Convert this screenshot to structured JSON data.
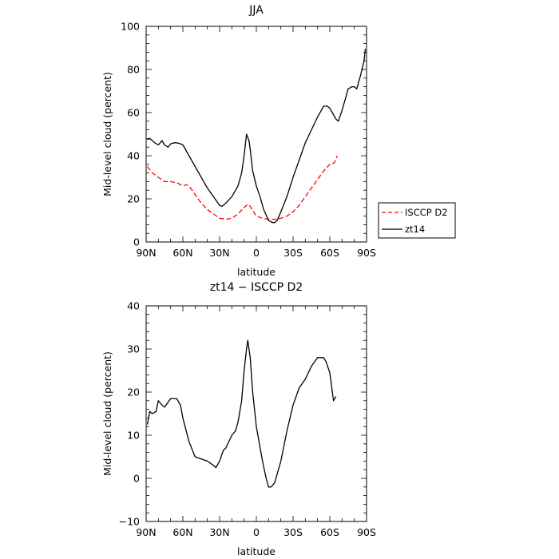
{
  "chart_data": [
    {
      "type": "line",
      "title": "JJA",
      "xlabel": "latitude",
      "ylabel": "Mid-level cloud (percent)",
      "xlim": [
        90,
        -90
      ],
      "ylim": [
        0,
        100
      ],
      "xticks": [
        90,
        60,
        30,
        0,
        -30,
        -60,
        -90
      ],
      "xtick_labels": [
        "90N",
        "60N",
        "30N",
        "0",
        "30S",
        "60S",
        "90S"
      ],
      "yticks": [
        0,
        20,
        40,
        60,
        80,
        100
      ],
      "ytick_labels": [
        "0",
        "20",
        "40",
        "60",
        "80",
        "100"
      ],
      "legend": {
        "placement": "right",
        "entries": [
          "ISCCP D2",
          "zt14"
        ]
      },
      "series": [
        {
          "name": "ISCCP D2",
          "color": "#ff0000",
          "dash": true,
          "x": [
            89,
            85,
            80,
            75,
            70,
            65,
            60,
            57,
            55,
            50,
            45,
            40,
            35,
            30,
            25,
            20,
            15,
            10,
            7,
            5,
            0,
            -5,
            -10,
            -15,
            -20,
            -25,
            -30,
            -35,
            -40,
            -45,
            -50,
            -55,
            -60,
            -62,
            -64,
            -66
          ],
          "y": [
            35,
            32,
            30,
            28,
            28,
            27.5,
            26,
            26.5,
            26,
            22,
            18,
            15,
            13,
            11,
            10.5,
            11,
            13,
            16,
            17.5,
            16.5,
            12,
            11,
            10.5,
            10.5,
            11,
            12,
            14,
            17,
            21,
            25,
            29,
            33,
            36,
            36,
            37,
            40
          ]
        },
        {
          "name": "zt14",
          "color": "#000000",
          "dash": false,
          "x": [
            89,
            87,
            85,
            83,
            80,
            77,
            75,
            72,
            70,
            67,
            65,
            62,
            60,
            55,
            50,
            45,
            40,
            35,
            30,
            28,
            25,
            20,
            15,
            12,
            10,
            8,
            6,
            5,
            3,
            0,
            -3,
            -6,
            -10,
            -13,
            -15,
            -17,
            -20,
            -25,
            -30,
            -35,
            -40,
            -45,
            -50,
            -55,
            -58,
            -60,
            -62,
            -65,
            -67,
            -70,
            -72,
            -75,
            -78,
            -80,
            -82,
            -85,
            -88,
            -89
          ],
          "y": [
            47.5,
            48,
            47,
            46,
            45,
            47,
            45,
            44,
            45.5,
            46,
            46,
            45.5,
            45,
            40,
            35,
            30,
            25,
            21,
            17,
            16.5,
            18,
            21,
            26,
            32,
            40,
            50,
            47,
            43,
            33,
            26,
            21,
            15,
            10,
            9,
            9,
            10,
            14,
            21,
            30,
            38,
            46,
            52,
            58,
            63,
            63,
            62,
            60,
            57,
            56,
            61,
            65,
            71,
            72,
            72,
            71,
            77,
            84,
            89.5
          ]
        }
      ]
    },
    {
      "type": "line",
      "title": "zt14 − ISCCP D2",
      "xlabel": "latitude",
      "ylabel": "Mid-level cloud (percent)",
      "xlim": [
        90,
        -90
      ],
      "ylim": [
        -10,
        40
      ],
      "xticks": [
        90,
        60,
        30,
        0,
        -30,
        -60,
        -90
      ],
      "xtick_labels": [
        "90N",
        "60N",
        "30N",
        "0",
        "30S",
        "60S",
        "90S"
      ],
      "yticks": [
        -10,
        0,
        10,
        20,
        30,
        40
      ],
      "ytick_labels": [
        "−10",
        "0",
        "10",
        "20",
        "30",
        "40"
      ],
      "series": [
        {
          "color": "#000000",
          "dash": false,
          "x": [
            89,
            87,
            85,
            82,
            80,
            77,
            75,
            70,
            65,
            62,
            60,
            55,
            50,
            45,
            40,
            35,
            33,
            30,
            27,
            25,
            20,
            17,
            15,
            12,
            10,
            8,
            7,
            5,
            3,
            0,
            -5,
            -8,
            -10,
            -12,
            -15,
            -17,
            -20,
            -25,
            -30,
            -35,
            -40,
            -45,
            -50,
            -52,
            -55,
            -57,
            -60,
            -63,
            -65
          ],
          "y": [
            12.5,
            15.5,
            15,
            15.5,
            18,
            17,
            16.5,
            18.5,
            18.5,
            17,
            14,
            8.5,
            5,
            4.5,
            4,
            3,
            2.5,
            4,
            6.5,
            7,
            10,
            11,
            13,
            18,
            25,
            30,
            32,
            28,
            20,
            12,
            4,
            0,
            -2,
            -2,
            -1,
            1,
            4,
            11,
            17,
            21,
            23,
            26,
            28,
            28,
            28,
            27,
            24.5,
            18,
            19
          ]
        }
      ]
    }
  ]
}
